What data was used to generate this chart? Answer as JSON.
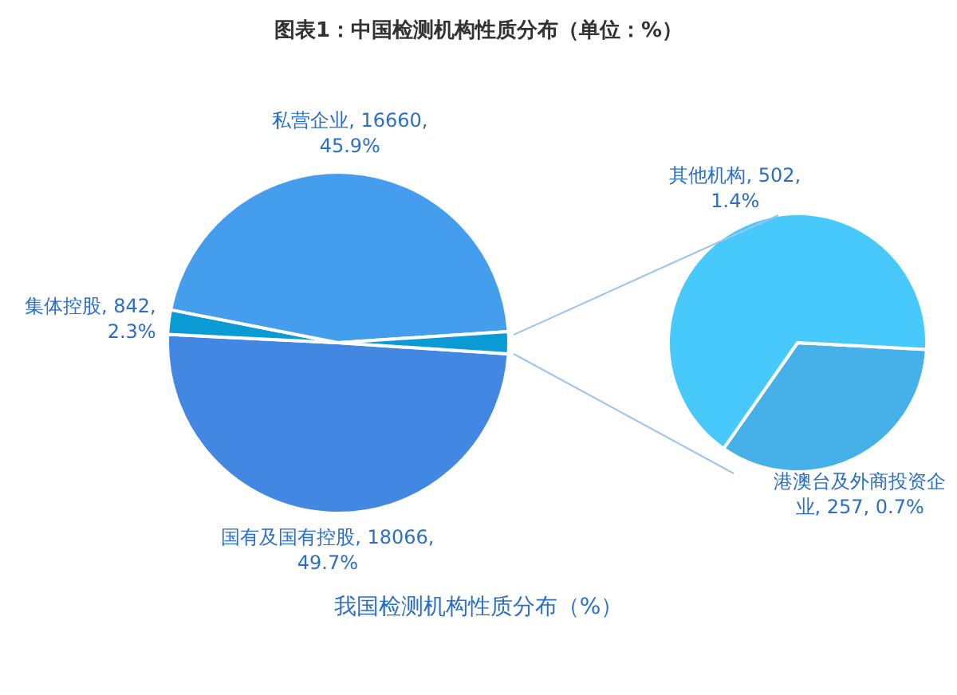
{
  "chart_data": [
    {
      "type": "pie",
      "title": "图表1：中国检测机构性质分布（单位：%）",
      "categories": [
        "国有及国有控股",
        "集体控股",
        "私营企业",
        null
      ],
      "values": [
        18066,
        842,
        16660,
        759
      ],
      "value_labels": [
        "18066, 49.7%",
        "842, 2.3%",
        "16660, 45.9%",
        null
      ],
      "colors": [
        "#4287e2",
        "#0a9bd4",
        "#449ded",
        "#0a9bd4"
      ],
      "annotations": [
        "我国检测机构性质分布（%）"
      ]
    },
    {
      "type": "pie",
      "categories": [
        "港澳台及外商投资企业",
        "其他机构"
      ],
      "values": [
        257,
        502
      ],
      "value_labels": [
        "257, 0.7%",
        "502, 1.4%"
      ],
      "colors": [
        "#46b0e8",
        "#47c9fb"
      ]
    }
  ]
}
